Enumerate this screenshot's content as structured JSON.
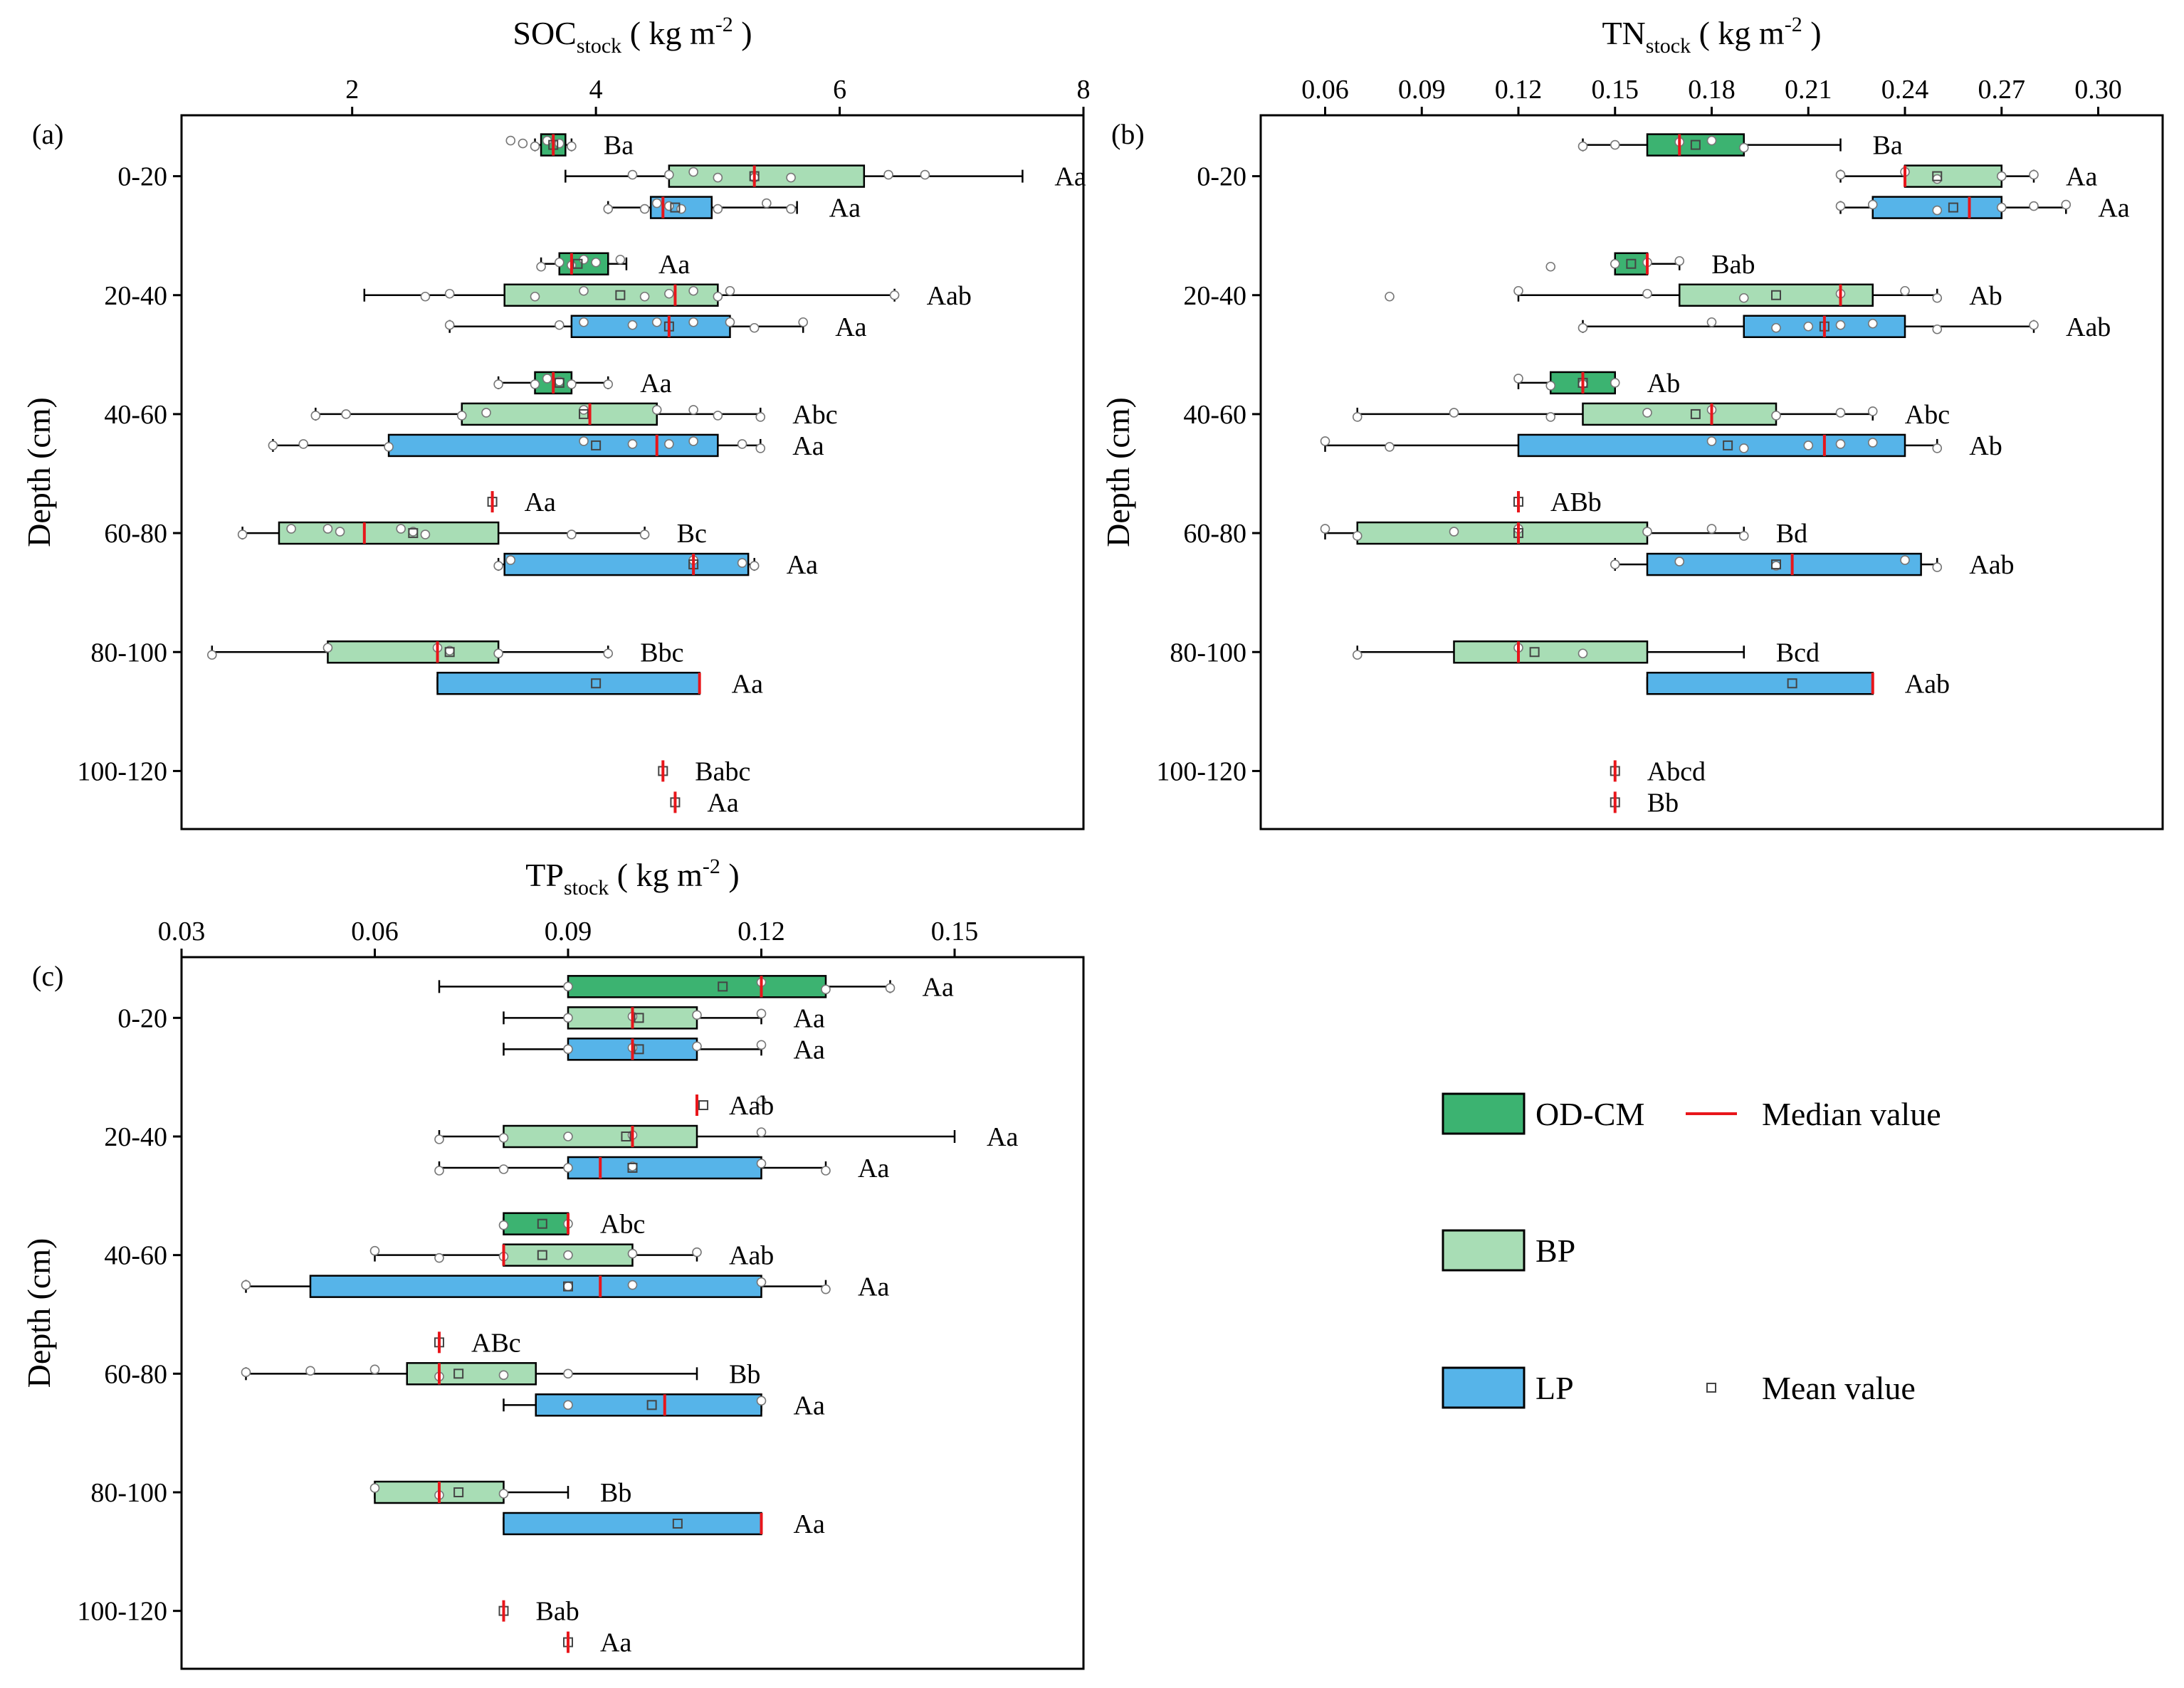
{
  "colors": {
    "OD-CM": "#3cb371",
    "BP": "#a8ddb5",
    "LP": "#56b4e9",
    "median": "#e8161b",
    "point": "#ffffff"
  },
  "depths": [
    "0-20",
    "20-40",
    "40-60",
    "60-80",
    "80-100",
    "100-120"
  ],
  "ylabel": "Depth (cm)",
  "legend": {
    "groups": [
      {
        "key": "OD-CM",
        "label": "OD-CM"
      },
      {
        "key": "BP",
        "label": "BP"
      },
      {
        "key": "LP",
        "label": "LP"
      }
    ],
    "median_label": "Median value",
    "mean_label": "Mean value"
  },
  "chart_data": [
    {
      "type": "box",
      "panel": "(a)",
      "title_main": "SOC",
      "title_sub": "stock",
      "title_unit": "( kg m",
      "title_exp": "-2",
      "title_end": " )",
      "xlim": [
        0.6,
        8
      ],
      "xticks": [
        2,
        4,
        6,
        8
      ],
      "tick_labels": [
        "2",
        "4",
        "6",
        "8"
      ],
      "boxes": [
        {
          "depth": "0-20",
          "group": "OD-CM",
          "wmin": 3.5,
          "q1": 3.55,
          "median": 3.65,
          "q3": 3.75,
          "wmax": 3.8,
          "mean": 3.65,
          "points": [
            3.3,
            3.4,
            3.5,
            3.6,
            3.7,
            3.8
          ],
          "label": "Ba"
        },
        {
          "depth": "0-20",
          "group": "BP",
          "wmin": 3.75,
          "q1": 4.6,
          "median": 5.3,
          "q3": 6.2,
          "wmax": 7.5,
          "mean": 5.3,
          "points": [
            4.3,
            4.6,
            4.8,
            5.0,
            5.3,
            5.6,
            6.4,
            6.7
          ],
          "label": "Aa"
        },
        {
          "depth": "0-20",
          "group": "LP",
          "wmin": 4.1,
          "q1": 4.45,
          "median": 4.55,
          "q3": 4.95,
          "wmax": 5.65,
          "mean": 4.65,
          "points": [
            4.1,
            4.4,
            4.5,
            4.6,
            4.7,
            5.0,
            5.4,
            5.6
          ],
          "label": "Aa"
        },
        {
          "depth": "20-40",
          "group": "OD-CM",
          "wmin": 3.55,
          "q1": 3.7,
          "median": 3.8,
          "q3": 4.1,
          "wmax": 4.25,
          "mean": 3.85,
          "points": [
            3.55,
            3.7,
            3.8,
            3.9,
            4.0,
            4.2
          ],
          "label": "Aa"
        },
        {
          "depth": "20-40",
          "group": "BP",
          "wmin": 2.1,
          "q1": 3.25,
          "median": 4.65,
          "q3": 5.0,
          "wmax": 6.45,
          "mean": 4.2,
          "points": [
            2.6,
            2.8,
            3.5,
            3.9,
            4.4,
            4.6,
            4.8,
            5.0,
            5.1,
            6.45
          ],
          "label": "Aab"
        },
        {
          "depth": "20-40",
          "group": "LP",
          "wmin": 2.8,
          "q1": 3.8,
          "median": 4.6,
          "q3": 5.1,
          "wmax": 5.7,
          "mean": 4.6,
          "points": [
            2.8,
            3.7,
            3.9,
            4.3,
            4.5,
            4.8,
            5.1,
            5.3,
            5.7
          ],
          "label": "Aa"
        },
        {
          "depth": "40-60",
          "group": "OD-CM",
          "wmin": 3.2,
          "q1": 3.5,
          "median": 3.65,
          "q3": 3.8,
          "wmax": 4.1,
          "mean": 3.7,
          "points": [
            3.2,
            3.5,
            3.6,
            3.7,
            3.8,
            4.1
          ],
          "label": "Aa"
        },
        {
          "depth": "40-60",
          "group": "BP",
          "wmin": 1.7,
          "q1": 2.9,
          "median": 3.95,
          "q3": 4.5,
          "wmax": 5.35,
          "mean": 3.9,
          "points": [
            1.7,
            1.95,
            2.9,
            3.1,
            3.9,
            4.5,
            4.8,
            5.0,
            5.35
          ],
          "label": "Abc"
        },
        {
          "depth": "40-60",
          "group": "LP",
          "wmin": 1.35,
          "q1": 2.3,
          "median": 4.5,
          "q3": 5.0,
          "wmax": 5.35,
          "mean": 4.0,
          "points": [
            1.35,
            1.6,
            2.3,
            3.9,
            4.3,
            4.6,
            4.8,
            5.2,
            5.35
          ],
          "label": "Aa"
        },
        {
          "depth": "60-80",
          "group": "OD-CM",
          "wmin": 3.15,
          "q1": 3.15,
          "median": 3.15,
          "q3": 3.15,
          "wmax": 3.15,
          "mean": 3.15,
          "points": [],
          "label": "Aa"
        },
        {
          "depth": "60-80",
          "group": "BP",
          "wmin": 1.1,
          "q1": 1.4,
          "median": 2.1,
          "q3": 3.2,
          "wmax": 4.4,
          "mean": 2.5,
          "points": [
            1.1,
            1.5,
            1.8,
            1.9,
            2.4,
            2.5,
            2.6,
            3.8,
            4.4
          ],
          "label": "Bc"
        },
        {
          "depth": "60-80",
          "group": "LP",
          "wmin": 3.2,
          "q1": 3.25,
          "median": 4.8,
          "q3": 5.25,
          "wmax": 5.3,
          "mean": 4.8,
          "points": [
            3.2,
            3.3,
            4.8,
            5.2,
            5.3
          ],
          "label": "Aa"
        },
        {
          "depth": "80-100",
          "group": "BP",
          "wmin": 0.85,
          "q1": 1.8,
          "median": 2.7,
          "q3": 3.2,
          "wmax": 4.1,
          "mean": 2.8,
          "points": [
            0.85,
            1.8,
            2.7,
            2.8,
            3.2,
            4.1
          ],
          "label": "Bbc"
        },
        {
          "depth": "80-100",
          "group": "LP",
          "wmin": 2.7,
          "q1": 2.7,
          "median": 4.85,
          "q3": 4.85,
          "wmax": 4.85,
          "mean": 4.0,
          "points": [],
          "label": "Aa"
        },
        {
          "depth": "100-120",
          "group": "BP",
          "wmin": 4.55,
          "q1": 4.55,
          "median": 4.55,
          "q3": 4.55,
          "wmax": 4.55,
          "mean": 4.55,
          "points": [],
          "label": "Babc"
        },
        {
          "depth": "100-120",
          "group": "LP",
          "wmin": 4.65,
          "q1": 4.65,
          "median": 4.65,
          "q3": 4.65,
          "wmax": 4.65,
          "mean": 4.65,
          "points": [],
          "label": "Aa"
        }
      ]
    },
    {
      "type": "box",
      "panel": "(b)",
      "title_main": "TN",
      "title_sub": "stock",
      "title_unit": "( kg m",
      "title_exp": "-2",
      "title_end": " )",
      "xlim": [
        0.04,
        0.32
      ],
      "xticks": [
        0.06,
        0.09,
        0.12,
        0.15,
        0.18,
        0.21,
        0.24,
        0.27,
        0.3
      ],
      "tick_labels": [
        "0.06",
        "0.09",
        "0.12",
        "0.15",
        "0.18",
        "0.21",
        "0.24",
        "0.27",
        "0.30"
      ],
      "boxes": [
        {
          "depth": "0-20",
          "group": "OD-CM",
          "wmin": 0.14,
          "q1": 0.16,
          "median": 0.17,
          "q3": 0.19,
          "wmax": 0.22,
          "mean": 0.175,
          "points": [
            0.14,
            0.15,
            0.17,
            0.18,
            0.19
          ],
          "label": "Ba"
        },
        {
          "depth": "0-20",
          "group": "BP",
          "wmin": 0.22,
          "q1": 0.24,
          "median": 0.24,
          "q3": 0.27,
          "wmax": 0.28,
          "mean": 0.25,
          "points": [
            0.22,
            0.24,
            0.25,
            0.27,
            0.28
          ],
          "label": "Aa"
        },
        {
          "depth": "0-20",
          "group": "LP",
          "wmin": 0.22,
          "q1": 0.23,
          "median": 0.26,
          "q3": 0.27,
          "wmax": 0.29,
          "mean": 0.255,
          "points": [
            0.22,
            0.23,
            0.25,
            0.27,
            0.28,
            0.29
          ],
          "label": "Aa"
        },
        {
          "depth": "20-40",
          "group": "OD-CM",
          "wmin": 0.15,
          "q1": 0.15,
          "median": 0.16,
          "q3": 0.16,
          "wmax": 0.17,
          "mean": 0.155,
          "points": [
            0.13,
            0.15,
            0.16,
            0.17
          ],
          "label": "Bab"
        },
        {
          "depth": "20-40",
          "group": "BP",
          "wmin": 0.12,
          "q1": 0.17,
          "median": 0.22,
          "q3": 0.23,
          "wmax": 0.25,
          "mean": 0.2,
          "points": [
            0.08,
            0.12,
            0.16,
            0.19,
            0.22,
            0.24,
            0.25
          ],
          "label": "Ab"
        },
        {
          "depth": "20-40",
          "group": "LP",
          "wmin": 0.14,
          "q1": 0.19,
          "median": 0.215,
          "q3": 0.24,
          "wmax": 0.28,
          "mean": 0.215,
          "points": [
            0.14,
            0.18,
            0.2,
            0.21,
            0.22,
            0.23,
            0.25,
            0.28
          ],
          "label": "Aab"
        },
        {
          "depth": "40-60",
          "group": "OD-CM",
          "wmin": 0.12,
          "q1": 0.13,
          "median": 0.14,
          "q3": 0.15,
          "wmax": 0.15,
          "mean": 0.14,
          "points": [
            0.12,
            0.13,
            0.14,
            0.15
          ],
          "label": "Ab"
        },
        {
          "depth": "40-60",
          "group": "BP",
          "wmin": 0.07,
          "q1": 0.14,
          "median": 0.18,
          "q3": 0.2,
          "wmax": 0.23,
          "mean": 0.175,
          "points": [
            0.07,
            0.1,
            0.13,
            0.16,
            0.18,
            0.2,
            0.22,
            0.23
          ],
          "label": "Abc"
        },
        {
          "depth": "40-60",
          "group": "LP",
          "wmin": 0.06,
          "q1": 0.12,
          "median": 0.215,
          "q3": 0.24,
          "wmax": 0.25,
          "mean": 0.185,
          "points": [
            0.06,
            0.08,
            0.18,
            0.19,
            0.21,
            0.22,
            0.23,
            0.25
          ],
          "label": "Ab"
        },
        {
          "depth": "60-80",
          "group": "OD-CM",
          "wmin": 0.12,
          "q1": 0.12,
          "median": 0.12,
          "q3": 0.12,
          "wmax": 0.12,
          "mean": 0.12,
          "points": [],
          "label": "ABb"
        },
        {
          "depth": "60-80",
          "group": "BP",
          "wmin": 0.06,
          "q1": 0.07,
          "median": 0.12,
          "q3": 0.16,
          "wmax": 0.19,
          "mean": 0.12,
          "points": [
            0.06,
            0.07,
            0.1,
            0.12,
            0.16,
            0.18,
            0.19
          ],
          "label": "Bd"
        },
        {
          "depth": "60-80",
          "group": "LP",
          "wmin": 0.15,
          "q1": 0.16,
          "median": 0.205,
          "q3": 0.245,
          "wmax": 0.25,
          "mean": 0.2,
          "points": [
            0.15,
            0.17,
            0.2,
            0.24,
            0.25
          ],
          "label": "Aab"
        },
        {
          "depth": "80-100",
          "group": "BP",
          "wmin": 0.07,
          "q1": 0.1,
          "median": 0.12,
          "q3": 0.16,
          "wmax": 0.19,
          "mean": 0.125,
          "points": [
            0.07,
            0.12,
            0.14
          ],
          "label": "Bcd"
        },
        {
          "depth": "80-100",
          "group": "LP",
          "wmin": 0.16,
          "q1": 0.16,
          "median": 0.23,
          "q3": 0.23,
          "wmax": 0.23,
          "mean": 0.205,
          "points": [],
          "label": "Aab"
        },
        {
          "depth": "100-120",
          "group": "BP",
          "wmin": 0.15,
          "q1": 0.15,
          "median": 0.15,
          "q3": 0.15,
          "wmax": 0.15,
          "mean": 0.15,
          "points": [],
          "label": "Abcd"
        },
        {
          "depth": "100-120",
          "group": "LP",
          "wmin": 0.15,
          "q1": 0.15,
          "median": 0.15,
          "q3": 0.15,
          "wmax": 0.15,
          "mean": 0.15,
          "points": [],
          "label": "Bb"
        }
      ]
    },
    {
      "type": "box",
      "panel": "(c)",
      "title_main": "TP",
      "title_sub": "stock",
      "title_unit": "( kg m",
      "title_exp": "-2",
      "title_end": " )",
      "xlim": [
        0.03,
        0.17
      ],
      "xticks": [
        0.03,
        0.06,
        0.09,
        0.12,
        0.15
      ],
      "tick_labels": [
        "0.03",
        "0.06",
        "0.09",
        "0.12",
        "0.15"
      ],
      "boxes": [
        {
          "depth": "0-20",
          "group": "OD-CM",
          "wmin": 0.07,
          "q1": 0.09,
          "median": 0.12,
          "q3": 0.13,
          "wmax": 0.14,
          "mean": 0.114,
          "points": [
            0.09,
            0.12,
            0.13,
            0.14
          ],
          "label": "Aa"
        },
        {
          "depth": "0-20",
          "group": "BP",
          "wmin": 0.08,
          "q1": 0.09,
          "median": 0.1,
          "q3": 0.11,
          "wmax": 0.12,
          "mean": 0.101,
          "points": [
            0.09,
            0.1,
            0.11,
            0.12
          ],
          "label": "Aa"
        },
        {
          "depth": "0-20",
          "group": "LP",
          "wmin": 0.08,
          "q1": 0.09,
          "median": 0.1,
          "q3": 0.11,
          "wmax": 0.12,
          "mean": 0.101,
          "points": [
            0.09,
            0.1,
            0.11,
            0.12
          ],
          "label": "Aa"
        },
        {
          "depth": "20-40",
          "group": "OD-CM",
          "wmin": 0.11,
          "q1": 0.11,
          "median": 0.11,
          "q3": 0.11,
          "wmax": 0.11,
          "mean": 0.111,
          "points": [
            0.12
          ],
          "label": "Aab"
        },
        {
          "depth": "20-40",
          "group": "BP",
          "wmin": 0.07,
          "q1": 0.08,
          "median": 0.1,
          "q3": 0.11,
          "wmax": 0.15,
          "mean": 0.099,
          "points": [
            0.07,
            0.08,
            0.09,
            0.1,
            0.12
          ],
          "label": "Aa"
        },
        {
          "depth": "20-40",
          "group": "LP",
          "wmin": 0.07,
          "q1": 0.09,
          "median": 0.095,
          "q3": 0.12,
          "wmax": 0.13,
          "mean": 0.1,
          "points": [
            0.07,
            0.08,
            0.09,
            0.1,
            0.12,
            0.13
          ],
          "label": "Aa"
        },
        {
          "depth": "40-60",
          "group": "OD-CM",
          "wmin": 0.08,
          "q1": 0.08,
          "median": 0.09,
          "q3": 0.09,
          "wmax": 0.09,
          "mean": 0.086,
          "points": [
            0.08,
            0.09
          ],
          "label": "Abc"
        },
        {
          "depth": "40-60",
          "group": "BP",
          "wmin": 0.06,
          "q1": 0.08,
          "median": 0.08,
          "q3": 0.1,
          "wmax": 0.11,
          "mean": 0.086,
          "points": [
            0.06,
            0.07,
            0.08,
            0.09,
            0.1,
            0.11
          ],
          "label": "Aab"
        },
        {
          "depth": "40-60",
          "group": "LP",
          "wmin": 0.04,
          "q1": 0.05,
          "median": 0.095,
          "q3": 0.12,
          "wmax": 0.13,
          "mean": 0.09,
          "points": [
            0.04,
            0.09,
            0.1,
            0.12,
            0.13
          ],
          "label": "Aa"
        },
        {
          "depth": "60-80",
          "group": "OD-CM",
          "wmin": 0.07,
          "q1": 0.07,
          "median": 0.07,
          "q3": 0.07,
          "wmax": 0.07,
          "mean": 0.07,
          "points": [],
          "label": "ABc"
        },
        {
          "depth": "60-80",
          "group": "BP",
          "wmin": 0.04,
          "q1": 0.065,
          "median": 0.07,
          "q3": 0.085,
          "wmax": 0.11,
          "mean": 0.073,
          "points": [
            0.04,
            0.05,
            0.06,
            0.07,
            0.08,
            0.09
          ],
          "label": "Bb"
        },
        {
          "depth": "60-80",
          "group": "LP",
          "wmin": 0.08,
          "q1": 0.085,
          "median": 0.105,
          "q3": 0.12,
          "wmax": 0.12,
          "mean": 0.103,
          "points": [
            0.09,
            0.12
          ],
          "label": "Aa"
        },
        {
          "depth": "80-100",
          "group": "BP",
          "wmin": 0.06,
          "q1": 0.06,
          "median": 0.07,
          "q3": 0.08,
          "wmax": 0.09,
          "mean": 0.073,
          "points": [
            0.06,
            0.07,
            0.08
          ],
          "label": "Bb"
        },
        {
          "depth": "80-100",
          "group": "LP",
          "wmin": 0.08,
          "q1": 0.08,
          "median": 0.12,
          "q3": 0.12,
          "wmax": 0.12,
          "mean": 0.107,
          "points": [],
          "label": "Aa"
        },
        {
          "depth": "100-120",
          "group": "BP",
          "wmin": 0.08,
          "q1": 0.08,
          "median": 0.08,
          "q3": 0.08,
          "wmax": 0.08,
          "mean": 0.08,
          "points": [],
          "label": "Bab"
        },
        {
          "depth": "100-120",
          "group": "LP",
          "wmin": 0.09,
          "q1": 0.09,
          "median": 0.09,
          "q3": 0.09,
          "wmax": 0.09,
          "mean": 0.09,
          "points": [],
          "label": "Aa"
        }
      ]
    }
  ]
}
